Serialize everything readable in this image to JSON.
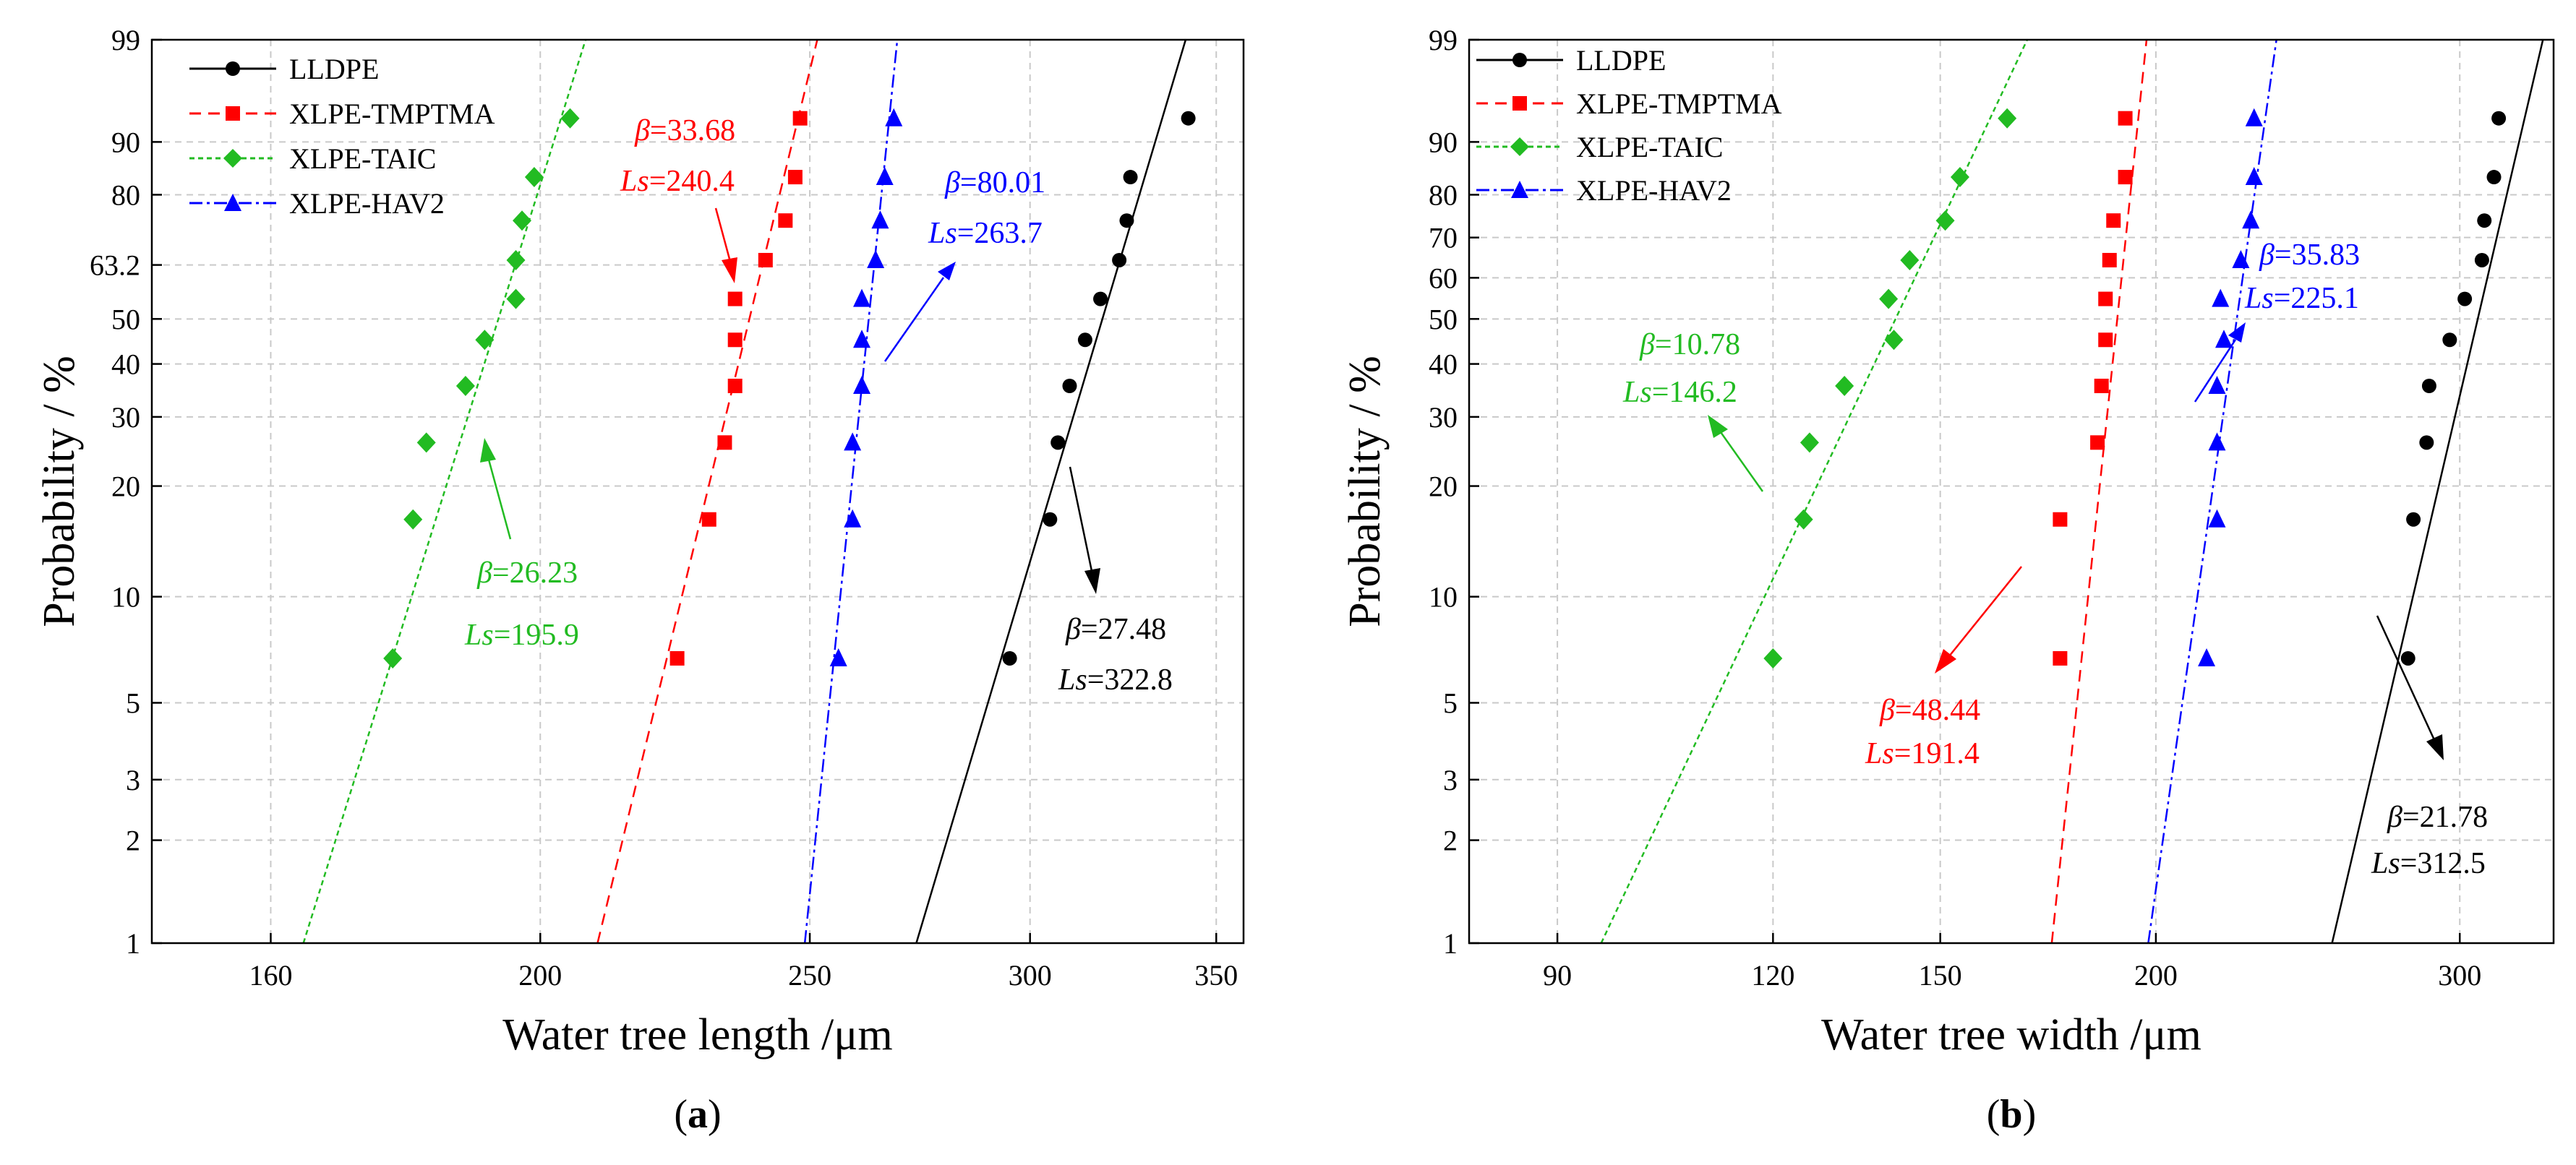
{
  "chart_data": [
    {
      "type": "scatter",
      "subtype": "weibull-probability-plot",
      "panel": "(a)",
      "panel_letter": "a",
      "xlabel": "Water tree length /μm",
      "ylabel": "Probability / %",
      "xlim": [
        145,
        358
      ],
      "x_ticks": [
        160,
        200,
        250,
        300,
        350
      ],
      "ylim": [
        1,
        99
      ],
      "y_ticks": [
        1,
        2,
        3,
        5,
        10,
        20,
        30,
        40,
        50,
        63.2,
        80,
        90,
        99
      ],
      "probabilities": [
        6.7,
        16.3,
        25.9,
        35.6,
        45.2,
        54.8,
        64.4,
        74.1,
        83.7,
        93.3
      ],
      "series": [
        {
          "name": "LLDPE",
          "color": "#000000",
          "marker": "circle",
          "dash": "",
          "beta": "27.48",
          "ls": "322.8",
          "fit": {
            "beta": 27.48,
            "scale": 322.8
          },
          "x": [
            295,
            305,
            307,
            310,
            314,
            318,
            323,
            325,
            326,
            342
          ]
        },
        {
          "name": "XLPE-TMPTMA",
          "color": "#ff0000",
          "marker": "square",
          "dash": "16 10",
          "beta": "33.68",
          "ls": "240.4",
          "fit": {
            "beta": 33.68,
            "scale": 240.4
          },
          "x": [
            224,
            230,
            233,
            235,
            235,
            235,
            241,
            245,
            247,
            248
          ]
        },
        {
          "name": "XLPE-TAIC",
          "color": "#22bb22",
          "marker": "diamond",
          "dash": "7 5",
          "beta": "26.23",
          "ls": "195.9",
          "fit": {
            "beta": 26.23,
            "scale": 195.9
          },
          "x": [
            177,
            180,
            182,
            188,
            191,
            196,
            196,
            197,
            199,
            205
          ]
        },
        {
          "name": "XLPE-HAV2",
          "color": "#0000ff",
          "marker": "triangle",
          "dash": "18 6 4 6",
          "beta": "80.01",
          "ls": "263.7",
          "fit": {
            "beta": 80.01,
            "scale": 263.7
          },
          "x": [
            256,
            259,
            259,
            261,
            261,
            261,
            264,
            265,
            266,
            268
          ]
        }
      ]
    },
    {
      "type": "scatter",
      "subtype": "weibull-probability-plot",
      "panel": "(b)",
      "panel_letter": "b",
      "xlabel": "Water tree width /μm",
      "ylabel": "Probability / %",
      "xlim": [
        80,
        340
      ],
      "x_ticks": [
        90,
        120,
        150,
        200,
        300
      ],
      "ylim": [
        1,
        99
      ],
      "y_ticks": [
        1,
        2,
        3,
        5,
        10,
        20,
        30,
        40,
        50,
        60,
        70,
        80,
        90,
        99
      ],
      "probabilities": [
        6.7,
        16.3,
        25.9,
        35.6,
        45.2,
        54.8,
        64.4,
        74.1,
        83.7,
        93.3
      ],
      "series": [
        {
          "name": "LLDPE",
          "color": "#000000",
          "marker": "circle",
          "dash": "",
          "beta": "21.78",
          "ls": "312.5",
          "fit": {
            "beta": 21.78,
            "scale": 312.5
          },
          "x": [
            280,
            282,
            287,
            288,
            296,
            302,
            309,
            310,
            314,
            316
          ]
        },
        {
          "name": "XLPE-TMPTMA",
          "color": "#ff0000",
          "marker": "square",
          "dash": "16 10",
          "beta": "48.44",
          "ls": "191.4",
          "fit": {
            "beta": 48.44,
            "scale": 191.4
          },
          "x": [
            176,
            176,
            185,
            186,
            187,
            187,
            188,
            189,
            192,
            192
          ]
        },
        {
          "name": "XLPE-TAIC",
          "color": "#22bb22",
          "marker": "diamond",
          "dash": "7 5",
          "beta": "10.78",
          "ls": "146.2",
          "fit": {
            "beta": 10.78,
            "scale": 146.2
          },
          "x": [
            120,
            125,
            126,
            132,
            141,
            140,
            144,
            151,
            154,
            164
          ]
        },
        {
          "name": "XLPE-HAV2",
          "color": "#0000ff",
          "marker": "triangle",
          "dash": "18 6 4 6",
          "beta": "35.83",
          "ls": "225.1",
          "fit": {
            "beta": 35.83,
            "scale": 225.1
          },
          "x": [
            214,
            217,
            217,
            217,
            219,
            218,
            224,
            227,
            228,
            228
          ]
        }
      ]
    }
  ]
}
